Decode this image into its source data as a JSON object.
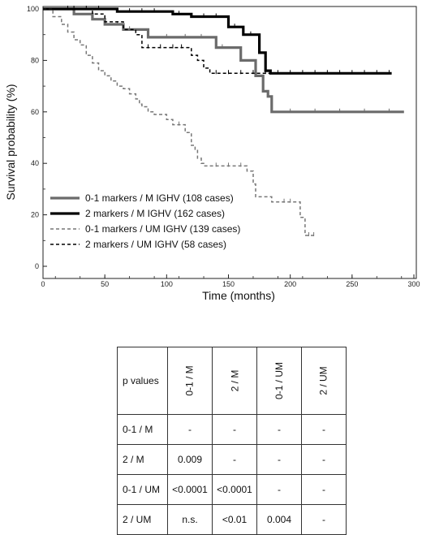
{
  "chart_data": {
    "type": "line",
    "subtype": "kaplan-meier step",
    "xlabel": "Time (months)",
    "ylabel": "Survival probability (%)",
    "xlim": [
      0,
      300
    ],
    "ylim": [
      0,
      100
    ],
    "x_ticks": [
      0,
      50,
      100,
      150,
      200,
      250,
      300
    ],
    "y_ticks": [
      0,
      20,
      40,
      60,
      80,
      100
    ],
    "grid": false,
    "legend_position": "lower-left",
    "series": [
      {
        "name": "0-1 markers / M IGHV (108 cases)",
        "color": "#6b6b6b",
        "style": "solid",
        "width": "thick",
        "points": [
          [
            0,
            100
          ],
          [
            25,
            100
          ],
          [
            25,
            98
          ],
          [
            40,
            98
          ],
          [
            40,
            96
          ],
          [
            50,
            96
          ],
          [
            50,
            94
          ],
          [
            65,
            94
          ],
          [
            65,
            92
          ],
          [
            85,
            92
          ],
          [
            85,
            89
          ],
          [
            140,
            89
          ],
          [
            140,
            85
          ],
          [
            160,
            85
          ],
          [
            160,
            80
          ],
          [
            172,
            80
          ],
          [
            172,
            74
          ],
          [
            178,
            74
          ],
          [
            178,
            68
          ],
          [
            182,
            68
          ],
          [
            182,
            66
          ],
          [
            185,
            66
          ],
          [
            185,
            60
          ],
          [
            292,
            60
          ]
        ],
        "censors": [
          [
            60,
            94
          ],
          [
            70,
            92
          ],
          [
            100,
            89
          ],
          [
            115,
            89
          ],
          [
            128,
            89
          ],
          [
            145,
            85
          ],
          [
            200,
            60
          ],
          [
            220,
            60
          ],
          [
            240,
            60
          ],
          [
            260,
            60
          ],
          [
            280,
            60
          ]
        ]
      },
      {
        "name": "2 markers / M IGHV (162 cases)",
        "color": "#000000",
        "style": "solid",
        "width": "thick",
        "points": [
          [
            0,
            100
          ],
          [
            60,
            100
          ],
          [
            60,
            99
          ],
          [
            105,
            99
          ],
          [
            105,
            98
          ],
          [
            120,
            98
          ],
          [
            120,
            97
          ],
          [
            150,
            97
          ],
          [
            150,
            93
          ],
          [
            162,
            93
          ],
          [
            162,
            90
          ],
          [
            175,
            90
          ],
          [
            175,
            83
          ],
          [
            180,
            83
          ],
          [
            180,
            76
          ],
          [
            184,
            76
          ],
          [
            184,
            75
          ],
          [
            282,
            75
          ]
        ],
        "censors": [
          [
            20,
            100
          ],
          [
            35,
            100
          ],
          [
            45,
            100
          ],
          [
            70,
            99
          ],
          [
            80,
            99
          ],
          [
            90,
            99
          ],
          [
            110,
            98
          ],
          [
            130,
            97
          ],
          [
            140,
            97
          ],
          [
            155,
            93
          ],
          [
            168,
            90
          ],
          [
            190,
            75
          ],
          [
            200,
            75
          ],
          [
            210,
            75
          ],
          [
            220,
            75
          ],
          [
            230,
            75
          ],
          [
            240,
            75
          ],
          [
            250,
            75
          ],
          [
            260,
            75
          ],
          [
            270,
            75
          ],
          [
            280,
            75
          ]
        ]
      },
      {
        "name": "0-1 markers / UM IGHV (139 cases)",
        "color": "#777777",
        "style": "dashed",
        "width": "thin",
        "points": [
          [
            0,
            100
          ],
          [
            8,
            100
          ],
          [
            8,
            97
          ],
          [
            15,
            97
          ],
          [
            15,
            94
          ],
          [
            20,
            94
          ],
          [
            20,
            91
          ],
          [
            25,
            91
          ],
          [
            25,
            88
          ],
          [
            30,
            88
          ],
          [
            30,
            86
          ],
          [
            35,
            86
          ],
          [
            35,
            82
          ],
          [
            40,
            82
          ],
          [
            40,
            79
          ],
          [
            45,
            79
          ],
          [
            45,
            76
          ],
          [
            50,
            76
          ],
          [
            50,
            74
          ],
          [
            55,
            74
          ],
          [
            55,
            72
          ],
          [
            60,
            72
          ],
          [
            60,
            70
          ],
          [
            65,
            70
          ],
          [
            65,
            69
          ],
          [
            70,
            69
          ],
          [
            70,
            67
          ],
          [
            75,
            67
          ],
          [
            75,
            65
          ],
          [
            78,
            65
          ],
          [
            78,
            63
          ],
          [
            80,
            63
          ],
          [
            80,
            62
          ],
          [
            85,
            62
          ],
          [
            85,
            60
          ],
          [
            90,
            60
          ],
          [
            90,
            59
          ],
          [
            100,
            59
          ],
          [
            100,
            57
          ],
          [
            105,
            57
          ],
          [
            105,
            55
          ],
          [
            115,
            55
          ],
          [
            115,
            52
          ],
          [
            120,
            52
          ],
          [
            120,
            47
          ],
          [
            123,
            47
          ],
          [
            123,
            45
          ],
          [
            125,
            45
          ],
          [
            125,
            42
          ],
          [
            128,
            42
          ],
          [
            128,
            40
          ],
          [
            130,
            40
          ],
          [
            130,
            39
          ],
          [
            165,
            39
          ],
          [
            165,
            37
          ],
          [
            170,
            37
          ],
          [
            170,
            32
          ],
          [
            172,
            32
          ],
          [
            172,
            27
          ],
          [
            185,
            27
          ],
          [
            185,
            25
          ],
          [
            208,
            25
          ],
          [
            208,
            19
          ],
          [
            212,
            19
          ],
          [
            212,
            12
          ],
          [
            220,
            12
          ]
        ],
        "censors": [
          [
            110,
            55
          ],
          [
            140,
            39
          ],
          [
            150,
            39
          ],
          [
            160,
            39
          ],
          [
            195,
            25
          ],
          [
            200,
            25
          ],
          [
            215,
            12
          ],
          [
            219,
            12
          ]
        ]
      },
      {
        "name": "2 markers / UM IGHV (58 cases)",
        "color": "#000000",
        "style": "dashed",
        "width": "thin",
        "points": [
          [
            0,
            100
          ],
          [
            40,
            100
          ],
          [
            40,
            98
          ],
          [
            50,
            98
          ],
          [
            50,
            95
          ],
          [
            65,
            95
          ],
          [
            65,
            92
          ],
          [
            75,
            92
          ],
          [
            75,
            90
          ],
          [
            80,
            90
          ],
          [
            80,
            85
          ],
          [
            120,
            85
          ],
          [
            120,
            82
          ],
          [
            125,
            82
          ],
          [
            125,
            80
          ],
          [
            130,
            80
          ],
          [
            130,
            77
          ],
          [
            135,
            77
          ],
          [
            135,
            75
          ],
          [
            185,
            75
          ]
        ],
        "censors": [
          [
            25,
            100
          ],
          [
            85,
            85
          ],
          [
            95,
            85
          ],
          [
            105,
            85
          ],
          [
            112,
            85
          ],
          [
            140,
            75
          ],
          [
            150,
            75
          ],
          [
            160,
            75
          ],
          [
            170,
            75
          ],
          [
            180,
            75
          ]
        ]
      }
    ]
  },
  "table": {
    "corner_label": "p values",
    "column_headers": [
      "0-1  / M",
      "2 / M",
      "0-1 / UM",
      "2 / UM"
    ],
    "rows": [
      {
        "label": "0-1  / M",
        "cells": [
          "-",
          "-",
          "-",
          "-"
        ]
      },
      {
        "label": "2 / M",
        "cells": [
          "0.009",
          "-",
          "-",
          "-"
        ]
      },
      {
        "label": "0-1  / UM",
        "cells": [
          "<0.0001",
          "<0.0001",
          "-",
          "-"
        ]
      },
      {
        "label": "2 / UM",
        "cells": [
          "n.s.",
          "<0.01",
          "0.004",
          "-"
        ]
      }
    ]
  }
}
